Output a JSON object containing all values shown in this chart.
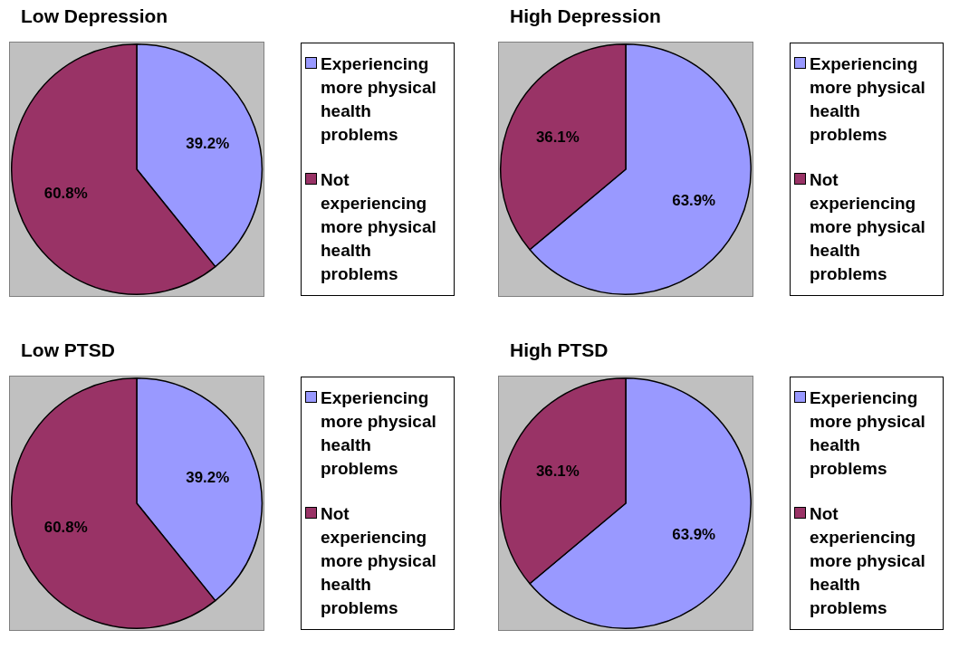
{
  "chart_data": [
    {
      "type": "pie",
      "title": "Low Depression",
      "categories": [
        "Experiencing more physical health problems",
        "Not experiencing more physical health problems"
      ],
      "values": [
        39.2,
        60.8
      ],
      "colors": [
        "#9999ff",
        "#993366"
      ],
      "value_labels": [
        "39.2%",
        "60.8%"
      ],
      "legend": "right"
    },
    {
      "type": "pie",
      "title": "High Depression",
      "categories": [
        "Experiencing more physical health problems",
        "Not experiencing more physical health problems"
      ],
      "values": [
        63.9,
        36.1
      ],
      "colors": [
        "#9999ff",
        "#993366"
      ],
      "value_labels": [
        "63.9%",
        "36.1%"
      ],
      "legend": "right"
    },
    {
      "type": "pie",
      "title": "Low PTSD",
      "categories": [
        "Experiencing more physical health problems",
        "Not experiencing more physical health problems"
      ],
      "values": [
        39.2,
        60.8
      ],
      "colors": [
        "#9999ff",
        "#993366"
      ],
      "value_labels": [
        "39.2%",
        "60.8%"
      ],
      "legend": "right"
    },
    {
      "type": "pie",
      "title": "High PTSD",
      "categories": [
        "Experiencing more physical health problems",
        "Not experiencing more physical health problems"
      ],
      "values": [
        63.9,
        36.1
      ],
      "colors": [
        "#9999ff",
        "#993366"
      ],
      "value_labels": [
        "63.9%",
        "36.1%"
      ],
      "legend": "right"
    }
  ]
}
